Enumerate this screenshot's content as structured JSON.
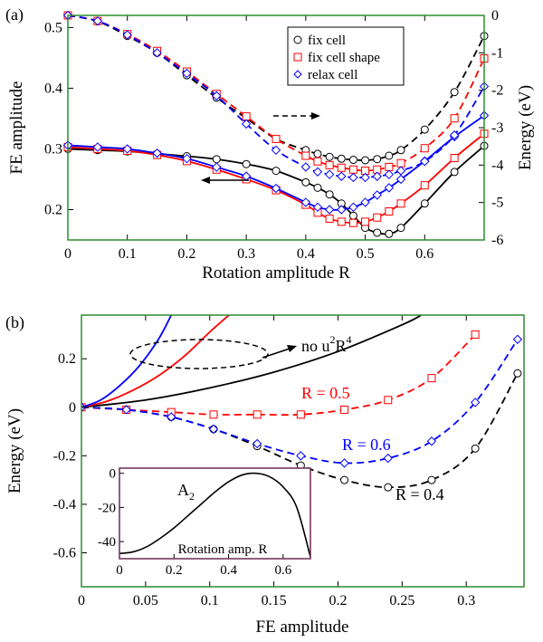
{
  "chart_data": [
    {
      "panel_label": "(a)",
      "type": "line",
      "xlabel": "Rotation amplitude R",
      "ylabel_left": "FE amplitude",
      "ylabel_right": "Energy (eV)",
      "xlim": [
        0,
        0.7
      ],
      "ylim_left": [
        0.15,
        0.52
      ],
      "ylim_right": [
        -6,
        0
      ],
      "xticks": [
        "0",
        "0.1",
        "0.2",
        "0.3",
        "0.4",
        "0.5",
        "0.6"
      ],
      "yticks_left": [
        "0.2",
        "0.3",
        "0.4",
        "0.5"
      ],
      "yticks_right": [
        "-6",
        "-5",
        "-4",
        "-3",
        "-2",
        "-1",
        "0"
      ],
      "legend": [
        "fix cell",
        "fix cell shape",
        "relax cell"
      ],
      "legend_position": "top-right",
      "colors": {
        "fix cell": "#000000",
        "fix cell shape": "#ff0000",
        "relax cell": "#0000ff",
        "frame": "#2e8b2e"
      },
      "series": [
        {
          "name": "fix cell",
          "axis": "left",
          "style": "solid",
          "marker": "circle",
          "x": [
            0,
            0.05,
            0.1,
            0.15,
            0.2,
            0.25,
            0.3,
            0.35,
            0.4,
            0.42,
            0.44,
            0.46,
            0.48,
            0.5,
            0.52,
            0.54,
            0.56,
            0.6,
            0.65,
            0.7
          ],
          "values": [
            0.3,
            0.298,
            0.296,
            0.292,
            0.288,
            0.283,
            0.275,
            0.264,
            0.245,
            0.236,
            0.225,
            0.21,
            0.19,
            0.17,
            0.162,
            0.16,
            0.17,
            0.21,
            0.262,
            0.305
          ]
        },
        {
          "name": "fix cell shape",
          "axis": "left",
          "style": "solid",
          "marker": "square",
          "x": [
            0,
            0.05,
            0.1,
            0.15,
            0.2,
            0.25,
            0.3,
            0.35,
            0.4,
            0.42,
            0.44,
            0.46,
            0.48,
            0.5,
            0.52,
            0.54,
            0.56,
            0.6,
            0.65,
            0.7
          ],
          "values": [
            0.303,
            0.3,
            0.297,
            0.29,
            0.28,
            0.266,
            0.25,
            0.232,
            0.208,
            0.195,
            0.185,
            0.18,
            0.178,
            0.18,
            0.187,
            0.197,
            0.21,
            0.24,
            0.285,
            0.325
          ]
        },
        {
          "name": "relax cell",
          "axis": "left",
          "style": "solid",
          "marker": "diamond",
          "x": [
            0,
            0.05,
            0.1,
            0.15,
            0.2,
            0.25,
            0.3,
            0.35,
            0.4,
            0.42,
            0.44,
            0.46,
            0.48,
            0.5,
            0.52,
            0.54,
            0.56,
            0.6,
            0.65,
            0.7
          ],
          "values": [
            0.306,
            0.303,
            0.3,
            0.293,
            0.284,
            0.27,
            0.255,
            0.235,
            0.212,
            0.204,
            0.2,
            0.2,
            0.204,
            0.212,
            0.224,
            0.236,
            0.25,
            0.28,
            0.32,
            0.355
          ]
        },
        {
          "name": "fix cell energy",
          "axis": "right",
          "style": "dashed",
          "marker": "circle",
          "x": [
            0,
            0.05,
            0.1,
            0.15,
            0.2,
            0.25,
            0.3,
            0.35,
            0.4,
            0.42,
            0.44,
            0.46,
            0.48,
            0.5,
            0.52,
            0.54,
            0.56,
            0.6,
            0.65,
            0.7
          ],
          "values": [
            0.0,
            -0.16,
            -0.55,
            -1.0,
            -1.6,
            -2.2,
            -2.75,
            -3.3,
            -3.6,
            -3.7,
            -3.78,
            -3.83,
            -3.86,
            -3.87,
            -3.84,
            -3.75,
            -3.6,
            -3.05,
            -2.05,
            -0.55
          ]
        },
        {
          "name": "fix cell shape energy",
          "axis": "right",
          "style": "dashed",
          "marker": "square",
          "x": [
            0,
            0.05,
            0.1,
            0.15,
            0.2,
            0.25,
            0.3,
            0.35,
            0.4,
            0.42,
            0.44,
            0.46,
            0.48,
            0.5,
            0.52,
            0.54,
            0.56,
            0.6,
            0.65,
            0.7
          ],
          "values": [
            0.0,
            -0.15,
            -0.5,
            -0.95,
            -1.5,
            -2.1,
            -2.7,
            -3.3,
            -3.75,
            -3.9,
            -4.0,
            -4.07,
            -4.12,
            -4.15,
            -4.12,
            -4.05,
            -3.95,
            -3.55,
            -2.75,
            -1.15
          ]
        },
        {
          "name": "relax cell energy",
          "axis": "right",
          "style": "dashed",
          "marker": "diamond",
          "x": [
            0,
            0.05,
            0.1,
            0.15,
            0.2,
            0.25,
            0.3,
            0.35,
            0.4,
            0.42,
            0.44,
            0.46,
            0.48,
            0.5,
            0.52,
            0.54,
            0.56,
            0.6,
            0.65,
            0.7
          ],
          "values": [
            0.0,
            -0.15,
            -0.52,
            -1.0,
            -1.55,
            -2.15,
            -2.9,
            -3.6,
            -4.05,
            -4.18,
            -4.25,
            -4.3,
            -4.33,
            -4.33,
            -4.3,
            -4.25,
            -4.15,
            -3.9,
            -3.2,
            -1.9
          ]
        }
      ]
    },
    {
      "panel_label": "(b)",
      "type": "line",
      "xlabel": "FE amplitude",
      "ylabel": "Energy (eV)",
      "xlim": [
        0,
        0.345
      ],
      "ylim": [
        -0.74,
        0.38
      ],
      "xticks": [
        "0",
        "0.05",
        "0.1",
        "0.15",
        "0.2",
        "0.25",
        "0.3"
      ],
      "yticks": [
        "-0.6",
        "-0.4",
        "-0.2",
        "0",
        "0.2"
      ],
      "annotations": {
        "no_term": "no u",
        "no_term_sup1": "2",
        "no_term_mid": "R",
        "no_term_sup2": "4",
        "r05": "R = 0.5",
        "r06": "R = 0.6",
        "r04": "R = 0.4"
      },
      "colors": {
        "R = 0.4": "#000000",
        "R = 0.5": "#ff0000",
        "R = 0.6": "#0000ff",
        "frame": "#2e8b2e"
      },
      "series": [
        {
          "name": "R = 0.4",
          "style": "dashed",
          "marker": "circle",
          "x": [
            0,
            0.035,
            0.07,
            0.103,
            0.137,
            0.171,
            0.205,
            0.239,
            0.273,
            0.307,
            0.34
          ],
          "values": [
            0,
            -0.01,
            -0.04,
            -0.09,
            -0.16,
            -0.24,
            -0.3,
            -0.33,
            -0.3,
            -0.17,
            0.14
          ]
        },
        {
          "name": "R = 0.5",
          "style": "dashed",
          "marker": "square",
          "x": [
            0,
            0.035,
            0.07,
            0.103,
            0.137,
            0.171,
            0.205,
            0.239,
            0.273,
            0.307
          ],
          "values": [
            0,
            -0.01,
            -0.02,
            -0.03,
            -0.03,
            -0.03,
            -0.01,
            0.03,
            0.12,
            0.3
          ]
        },
        {
          "name": "R = 0.6",
          "style": "dashed",
          "marker": "diamond",
          "x": [
            0,
            0.035,
            0.07,
            0.103,
            0.137,
            0.171,
            0.205,
            0.239,
            0.273,
            0.307,
            0.34
          ],
          "values": [
            0,
            -0.01,
            -0.04,
            -0.09,
            -0.15,
            -0.2,
            -0.23,
            -0.21,
            -0.14,
            0.02,
            0.28
          ]
        },
        {
          "name": "no u2R4 black",
          "style": "solid",
          "marker": "none",
          "x": [
            0,
            0.05,
            0.1,
            0.15,
            0.2,
            0.25,
            0.265
          ],
          "values": [
            0,
            0.03,
            0.08,
            0.145,
            0.23,
            0.34,
            0.38
          ]
        },
        {
          "name": "no u2R4 red",
          "style": "solid",
          "marker": "none",
          "x": [
            0,
            0.02,
            0.04,
            0.06,
            0.08,
            0.1,
            0.115
          ],
          "values": [
            0,
            0.025,
            0.07,
            0.13,
            0.21,
            0.31,
            0.38
          ]
        },
        {
          "name": "no u2R4 blue",
          "style": "solid",
          "marker": "none",
          "x": [
            0,
            0.015,
            0.03,
            0.045,
            0.06,
            0.07
          ],
          "values": [
            0,
            0.03,
            0.09,
            0.17,
            0.28,
            0.38
          ]
        }
      ]
    },
    {
      "panel_label": "inset",
      "type": "line",
      "title": "A",
      "title_sub": "2",
      "xlabel": "Rotation amp. R",
      "xlim": [
        0,
        0.7
      ],
      "ylim": [
        -50,
        3
      ],
      "xticks": [
        "0",
        "0.2",
        "0.4",
        "0.6"
      ],
      "yticks": [
        "-40",
        "-20",
        "0"
      ],
      "colors": {
        "line": "#000000",
        "frame": "#6b2a55"
      },
      "series": [
        {
          "name": "A2",
          "style": "solid",
          "marker": "none",
          "x": [
            0,
            0.05,
            0.1,
            0.15,
            0.2,
            0.25,
            0.3,
            0.35,
            0.4,
            0.45,
            0.5,
            0.55,
            0.6,
            0.65,
            0.7
          ],
          "values": [
            -47,
            -46,
            -43,
            -38,
            -32,
            -25,
            -18,
            -11,
            -5,
            -1,
            0,
            -2,
            -8,
            -20,
            -49
          ]
        }
      ]
    }
  ]
}
